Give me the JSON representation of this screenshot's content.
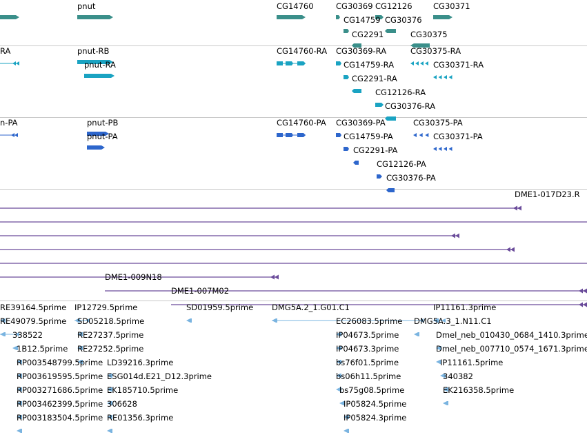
{
  "colors": {
    "gene": "#3a8f8a",
    "transcript_rna": "#1aa3c2",
    "transcript_protein": "#2d66cc",
    "bac": "#6a4b9a",
    "est": "#7ab4e0",
    "divider": "#c8c8c8",
    "background": "#ffffff"
  },
  "tracks": [
    {
      "id": "genes",
      "color": "gene",
      "features": [
        {
          "name": "",
          "glyph": "bar-right"
        },
        {
          "name": "pnut",
          "glyph": "bar-right"
        },
        {
          "name": "CG14760",
          "glyph": "bar-right"
        },
        {
          "name": "CG30369",
          "glyph": "tick-right"
        },
        {
          "name": "CG12126",
          "glyph": "small-right"
        },
        {
          "name": "CG30371",
          "glyph": "bar-right"
        },
        {
          "name": "CG14759",
          "glyph": "tick-right"
        },
        {
          "name": "CG30376",
          "glyph": "small-left"
        },
        {
          "name": "CG2291",
          "glyph": "small-left"
        },
        {
          "name": "CG30375",
          "glyph": "bar-left"
        }
      ]
    },
    {
      "id": "transcripts-rna",
      "color": "transcript_rna",
      "features": [
        {
          "name": "RA",
          "glyph": "line-left"
        },
        {
          "name": "pnut-RB",
          "glyph": "bar-right"
        },
        {
          "name": "pnut-RA",
          "glyph": "bar-right"
        },
        {
          "name": "CG14760-RA",
          "glyph": "exons-right"
        },
        {
          "name": "CG30369-RA",
          "glyph": "tick-right"
        },
        {
          "name": "CG30375-RA",
          "glyph": "multi-left"
        },
        {
          "name": "CG14759-RA",
          "glyph": "tick-right"
        },
        {
          "name": "CG30371-RA",
          "glyph": "multi-left"
        },
        {
          "name": "CG2291-RA",
          "glyph": "small-left"
        },
        {
          "name": "CG12126-RA",
          "glyph": "small-right"
        },
        {
          "name": "CG30376-RA",
          "glyph": "small-left"
        }
      ]
    },
    {
      "id": "transcripts-protein",
      "color": "transcript_protein",
      "features": [
        {
          "name": "n-PA",
          "glyph": "line-left"
        },
        {
          "name": "pnut-PB",
          "glyph": "bar-right"
        },
        {
          "name": "pnut-PA",
          "glyph": "bar-right"
        },
        {
          "name": "CG14760-PA",
          "glyph": "exons-right"
        },
        {
          "name": "CG30369-PA",
          "glyph": "tick-right"
        },
        {
          "name": "CG30375-PA",
          "glyph": "multi-left"
        },
        {
          "name": "CG14759-PA",
          "glyph": "tick-right"
        },
        {
          "name": "CG30371-PA",
          "glyph": "multi-left"
        },
        {
          "name": "CG2291-PA",
          "glyph": "small-left"
        },
        {
          "name": "CG12126-PA",
          "glyph": "small-right"
        },
        {
          "name": "CG30376-PA",
          "glyph": "small-left"
        }
      ]
    },
    {
      "id": "bac-clones",
      "color": "bac",
      "features": [
        {
          "name": "DME1-017D23.R",
          "glyph": "long-line-left"
        },
        {
          "name": "",
          "glyph": "long-line"
        },
        {
          "name": "",
          "glyph": "long-line-left"
        },
        {
          "name": "",
          "glyph": "long-line-left"
        },
        {
          "name": "",
          "glyph": "long-line"
        },
        {
          "name": "",
          "glyph": "long-line-left"
        },
        {
          "name": "DME1-009N18",
          "glyph": "long-line-left"
        },
        {
          "name": "DME1-007M02",
          "glyph": "long-line-left"
        }
      ]
    },
    {
      "id": "est-alignments",
      "color": "est",
      "features": [
        {
          "name": "RE39164.5prime"
        },
        {
          "name": "IP12729.5prime"
        },
        {
          "name": "SD01959.5prime"
        },
        {
          "name": "DMG5A.2_1.G01.C1"
        },
        {
          "name": "IP11161.3prime"
        },
        {
          "name": "RE49079.5prime"
        },
        {
          "name": "SD05218.5prime"
        },
        {
          "name": "EC26083.5prime"
        },
        {
          "name": "DMG5A.3_1.N11.C1"
        },
        {
          "name": "338522"
        },
        {
          "name": "RE27237.5prime"
        },
        {
          "name": "IP04673.5prime"
        },
        {
          "name": "Dmel_neb_010430_0684_1410.3prime"
        },
        {
          "name": "1B12.5prime"
        },
        {
          "name": "RE27252.5prime"
        },
        {
          "name": "IP04673.3prime"
        },
        {
          "name": "Dmel_neb_007710_0574_1671.3prime"
        },
        {
          "name": "RP003548799.5prime"
        },
        {
          "name": "LD39216.3prime"
        },
        {
          "name": "bs76f01.5prime"
        },
        {
          "name": "IP11161.5prime"
        },
        {
          "name": "RP003619595.5prime"
        },
        {
          "name": "ESG014d.E21_D12.3prime"
        },
        {
          "name": "bs06h11.5prime"
        },
        {
          "name": "340382"
        },
        {
          "name": "RP003271686.5prime"
        },
        {
          "name": "EK185710.5prime"
        },
        {
          "name": "bs75g08.5prime"
        },
        {
          "name": "EK216358.5prime"
        },
        {
          "name": "RP003462399.5prime"
        },
        {
          "name": "306628"
        },
        {
          "name": "IP05824.5prime"
        },
        {
          "name": "RP003183504.5prime"
        },
        {
          "name": "RE01356.3prime"
        },
        {
          "name": "IP05824.3prime"
        }
      ]
    }
  ]
}
